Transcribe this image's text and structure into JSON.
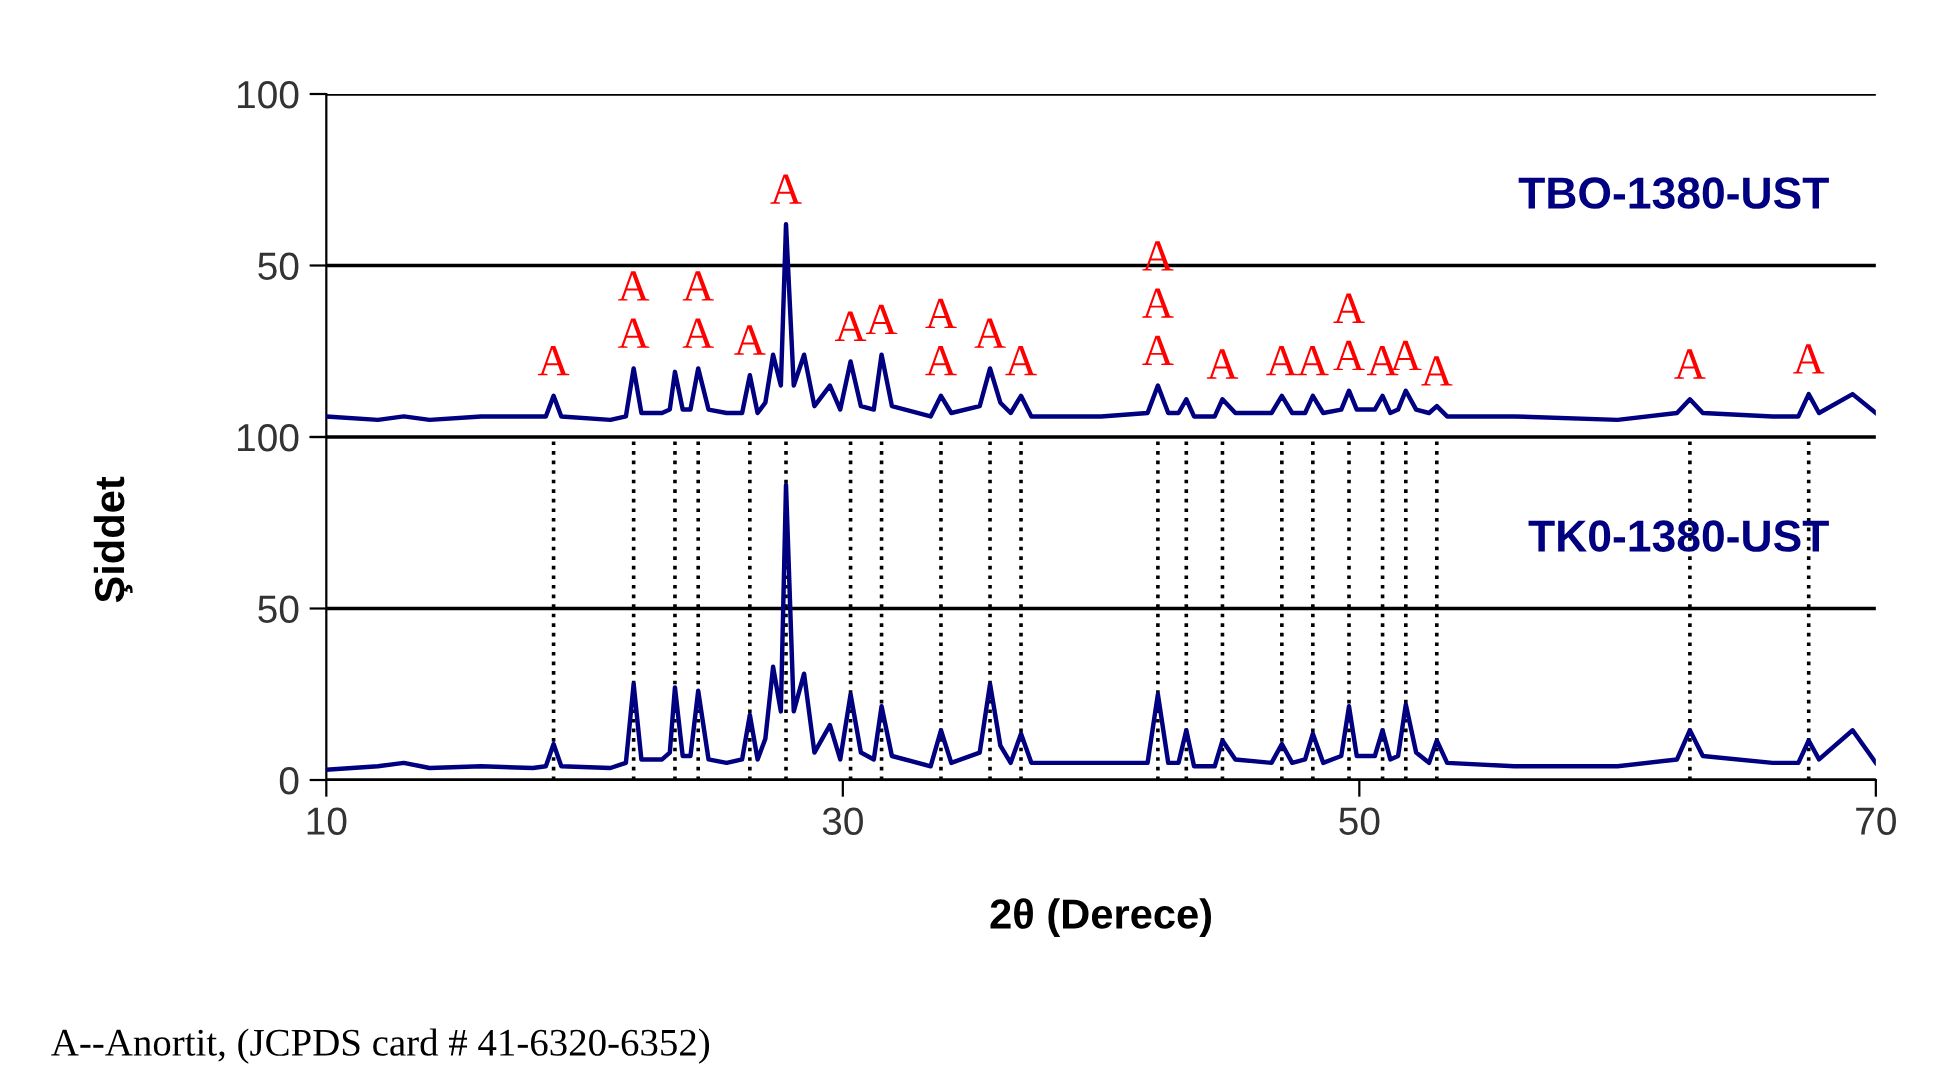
{
  "chart_data": [
    {
      "type": "line",
      "xlim": [
        10,
        70
      ],
      "tick_labels": "y",
      "ylim": [
        0,
        100
      ],
      "yticks": [
        {
          "value": 0,
          "label": null
        },
        50,
        100
      ],
      "grid": "y",
      "marker": "none",
      "line_style": "solid",
      "x": [
        10,
        12,
        13,
        14,
        16,
        18,
        18.5,
        18.8,
        19.1,
        21,
        21.6,
        21.9,
        22.2,
        23,
        23.3,
        23.5,
        23.8,
        24.1,
        24.4,
        24.8,
        25.5,
        26.1,
        26.4,
        26.7,
        27.0,
        27.3,
        27.6,
        27.8,
        28.1,
        28.5,
        28.9,
        29.5,
        29.9,
        30.3,
        30.7,
        31.2,
        31.5,
        31.9,
        33.4,
        33.8,
        34.2,
        35.3,
        35.7,
        36.1,
        36.5,
        36.9,
        37.3,
        40,
        41.8,
        42.2,
        42.6,
        43.0,
        43.3,
        43.6,
        44.4,
        44.7,
        45.2,
        46.6,
        47.0,
        47.4,
        47.9,
        48.2,
        48.6,
        49.3,
        49.6,
        49.9,
        50.6,
        50.9,
        51.2,
        51.5,
        51.8,
        52.2,
        52.7,
        53.0,
        53.4,
        56,
        60,
        62.3,
        62.8,
        63.3,
        66,
        67.0,
        67.4,
        67.8,
        69.1,
        70
      ],
      "series": [
        {
          "name": "TBO-1380-UST",
          "color": "#000080",
          "values": [
            6,
            5,
            6,
            5,
            6,
            6,
            6,
            12,
            6,
            5,
            6,
            20,
            7,
            7,
            8,
            19,
            8,
            8,
            20,
            8,
            7,
            7,
            18,
            7,
            10,
            24,
            15,
            62,
            15,
            24,
            9,
            15,
            8,
            22,
            9,
            8,
            24,
            9,
            6,
            12,
            7,
            9,
            20,
            10,
            7,
            12,
            6,
            6,
            7,
            15,
            7,
            7,
            11,
            6,
            6,
            11,
            7,
            7,
            12,
            7,
            7,
            12,
            7,
            8,
            13.5,
            8,
            8,
            12,
            7,
            8,
            13.5,
            8,
            7,
            9,
            6,
            6,
            5,
            7,
            11,
            7,
            6,
            6,
            12.5,
            7,
            12.5,
            7
          ]
        }
      ],
      "annotations": [
        {
          "text": "A",
          "x": 18.8,
          "y": 12
        },
        {
          "text": "A",
          "x": 21.9,
          "y": 20
        },
        {
          "text": "A",
          "x": 21.9,
          "y": 20
        },
        {
          "text": "A",
          "x": 24.4,
          "y": 20
        },
        {
          "text": "A",
          "x": 24.4,
          "y": 20
        },
        {
          "text": "A",
          "x": 26.4,
          "y": 18
        },
        {
          "text": "A",
          "x": 27.8,
          "y": 62
        },
        {
          "text": "A",
          "x": 30.3,
          "y": 22
        },
        {
          "text": "A",
          "x": 31.5,
          "y": 24
        },
        {
          "text": "A",
          "x": 33.8,
          "y": 12
        },
        {
          "text": "A",
          "x": 33.8,
          "y": 12
        },
        {
          "text": "A",
          "x": 35.7,
          "y": 20
        },
        {
          "text": "A",
          "x": 36.9,
          "y": 12
        },
        {
          "text": "A",
          "x": 42.2,
          "y": 15
        },
        {
          "text": "A",
          "x": 42.2,
          "y": 15
        },
        {
          "text": "A",
          "x": 42.2,
          "y": 15
        },
        {
          "text": "A",
          "x": 44.7,
          "y": 11
        },
        {
          "text": "A",
          "x": 47.0,
          "y": 12
        },
        {
          "text": "A",
          "x": 48.2,
          "y": 12
        },
        {
          "text": "A",
          "x": 49.6,
          "y": 13.5
        },
        {
          "text": "A",
          "x": 49.6,
          "y": 13.5
        },
        {
          "text": "A",
          "x": 50.9,
          "y": 12
        },
        {
          "text": "A",
          "x": 51.8,
          "y": 13.5
        },
        {
          "text": "A",
          "x": 53.0,
          "y": 9
        },
        {
          "text": "A",
          "x": 62.8,
          "y": 11
        },
        {
          "text": "A",
          "x": 67.4,
          "y": 12.5
        }
      ]
    },
    {
      "type": "line",
      "xlabel": "2θ (Derece)",
      "ylabel": "Şiddet",
      "xlim": [
        10,
        70
      ],
      "xticks": [
        10,
        30,
        50,
        70
      ],
      "ylim": [
        0,
        100
      ],
      "yticks": [
        0,
        50,
        100
      ],
      "grid": "y",
      "marker": "none",
      "line_style": "solid",
      "x": [
        10,
        12,
        13,
        14,
        16,
        18,
        18.5,
        18.8,
        19.1,
        21,
        21.6,
        21.9,
        22.2,
        23,
        23.3,
        23.5,
        23.8,
        24.1,
        24.4,
        24.8,
        25.5,
        26.1,
        26.4,
        26.7,
        27.0,
        27.3,
        27.6,
        27.8,
        28.1,
        28.5,
        28.9,
        29.5,
        29.9,
        30.3,
        30.7,
        31.2,
        31.5,
        31.9,
        33.4,
        33.8,
        34.2,
        35.3,
        35.7,
        36.1,
        36.5,
        36.9,
        37.3,
        40,
        41.8,
        42.2,
        42.6,
        43.0,
        43.3,
        43.6,
        44.4,
        44.7,
        45.2,
        46.6,
        47.0,
        47.4,
        47.9,
        48.2,
        48.6,
        49.3,
        49.6,
        49.9,
        50.6,
        50.9,
        51.2,
        51.5,
        51.8,
        52.2,
        52.7,
        53.0,
        53.4,
        56,
        60,
        62.3,
        62.8,
        63.3,
        66,
        67.0,
        67.4,
        67.8,
        69.1,
        70
      ],
      "series": [
        {
          "name": "TK0-1380-UST",
          "color": "#000080",
          "values": [
            3,
            4,
            5,
            3.5,
            4,
            3.5,
            4,
            10.5,
            4,
            3.5,
            5,
            28,
            6,
            6,
            8,
            27,
            7,
            7,
            26,
            6,
            5,
            6,
            19,
            6,
            12,
            33,
            20,
            86,
            20,
            31,
            8,
            16,
            6,
            25,
            8,
            6,
            21.5,
            7,
            4,
            14.5,
            5,
            8,
            28,
            10,
            5,
            13.5,
            5,
            5,
            5,
            25,
            5,
            5,
            14.5,
            4,
            4,
            11.5,
            6,
            5,
            10.5,
            5,
            6,
            13.5,
            5,
            7,
            21.5,
            7,
            7,
            14.5,
            6,
            7,
            22,
            8,
            5,
            11.5,
            5,
            4,
            4,
            6,
            14.5,
            7,
            5,
            5,
            11.5,
            6,
            14.5,
            5
          ]
        }
      ],
      "ref_lines": [
        {
          "axis": "x",
          "value": 18.8,
          "color": "#000000",
          "line_style": "dotted"
        },
        {
          "axis": "x",
          "value": 21.9,
          "color": "#000000",
          "line_style": "dotted"
        },
        {
          "axis": "x",
          "value": 23.5,
          "color": "#000000",
          "line_style": "dotted"
        },
        {
          "axis": "x",
          "value": 24.4,
          "color": "#000000",
          "line_style": "dotted"
        },
        {
          "axis": "x",
          "value": 26.4,
          "color": "#000000",
          "line_style": "dotted"
        },
        {
          "axis": "x",
          "value": 27.8,
          "color": "#000000",
          "line_style": "dotted"
        },
        {
          "axis": "x",
          "value": 30.3,
          "color": "#000000",
          "line_style": "dotted"
        },
        {
          "axis": "x",
          "value": 31.5,
          "color": "#000000",
          "line_style": "dotted"
        },
        {
          "axis": "x",
          "value": 33.8,
          "color": "#000000",
          "line_style": "dotted"
        },
        {
          "axis": "x",
          "value": 35.7,
          "color": "#000000",
          "line_style": "dotted"
        },
        {
          "axis": "x",
          "value": 36.9,
          "color": "#000000",
          "line_style": "dotted"
        },
        {
          "axis": "x",
          "value": 42.2,
          "color": "#000000",
          "line_style": "dotted"
        },
        {
          "axis": "x",
          "value": 43.3,
          "color": "#000000",
          "line_style": "dotted"
        },
        {
          "axis": "x",
          "value": 44.7,
          "color": "#000000",
          "line_style": "dotted"
        },
        {
          "axis": "x",
          "value": 47.0,
          "color": "#000000",
          "line_style": "dotted"
        },
        {
          "axis": "x",
          "value": 48.2,
          "color": "#000000",
          "line_style": "dotted"
        },
        {
          "axis": "x",
          "value": 49.6,
          "color": "#000000",
          "line_style": "dotted"
        },
        {
          "axis": "x",
          "value": 50.9,
          "color": "#000000",
          "line_style": "dotted"
        },
        {
          "axis": "x",
          "value": 51.8,
          "color": "#000000",
          "line_style": "dotted"
        },
        {
          "axis": "x",
          "value": 53.0,
          "color": "#000000",
          "line_style": "dotted"
        },
        {
          "axis": "x",
          "value": 62.8,
          "color": "#000000",
          "line_style": "dotted"
        },
        {
          "axis": "x",
          "value": 67.4,
          "color": "#000000",
          "line_style": "dotted"
        }
      ],
      "annotations": [
        "A--Anortit, (JCPDS card # 41-6320-6352)"
      ]
    }
  ]
}
